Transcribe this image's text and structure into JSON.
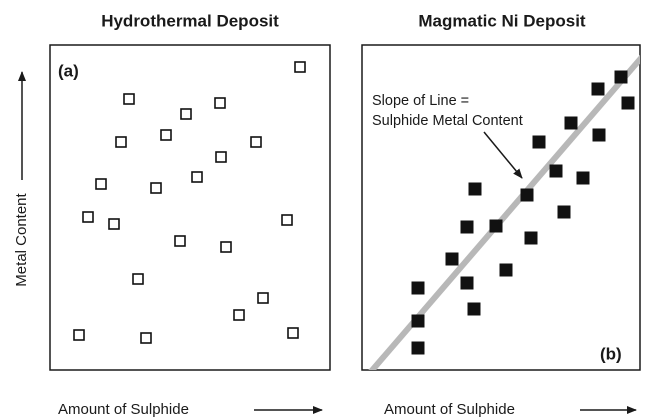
{
  "panels": [
    {
      "title": "Hydrothermal Deposit",
      "label": "(a)",
      "x_axis_label": "Amount of Sulphide"
    },
    {
      "title": "Magmatic Ni Deposit",
      "label": "(b)",
      "x_axis_label": "Amount of Sulphide",
      "annotation": [
        "Slope of Line =",
        "Sulphide Metal Content"
      ]
    }
  ],
  "y_axis_label": "Metal Content"
}
